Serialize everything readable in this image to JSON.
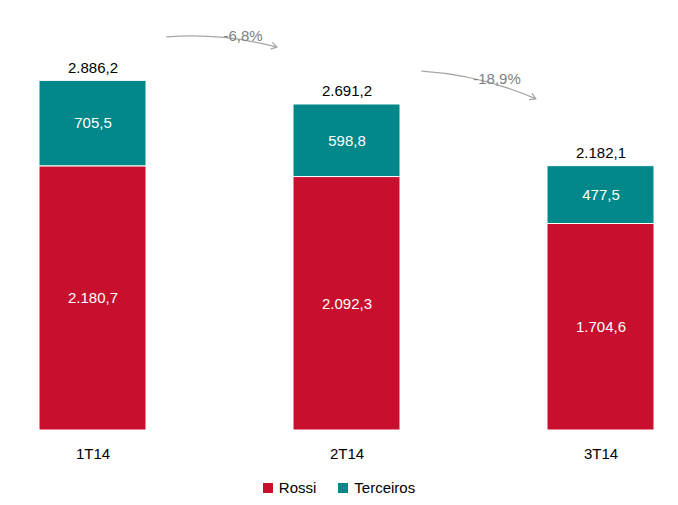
{
  "chart_data": {
    "type": "bar",
    "stacked": true,
    "data_labels": true,
    "tick_labels": "x",
    "legend": "bottom",
    "categories": [
      "1T14",
      "2T14",
      "3T14"
    ],
    "series": [
      {
        "name": "Rossi",
        "color": "#C8102E",
        "values": [
          2180.7,
          2092.3,
          1704.6
        ],
        "value_labels": [
          "2.180,7",
          "2.092,3",
          "1.704,6"
        ]
      },
      {
        "name": "Terceiros",
        "color": "#00878A",
        "values": [
          705.5,
          598.8,
          477.5
        ],
        "value_labels": [
          "705,5",
          "598,8",
          "477,5"
        ]
      }
    ],
    "totals": [
      2886.2,
      2691.2,
      2182.1
    ],
    "total_labels": [
      "2.886,2",
      "2.691,2",
      "2.182,1"
    ],
    "annotations": [
      {
        "from": "1T14",
        "to": "2T14",
        "label": "-6,8%"
      },
      {
        "from": "2T14",
        "to": "3T14",
        "label": "-18,9%"
      }
    ],
    "ylim": [
      0,
      3500
    ]
  }
}
